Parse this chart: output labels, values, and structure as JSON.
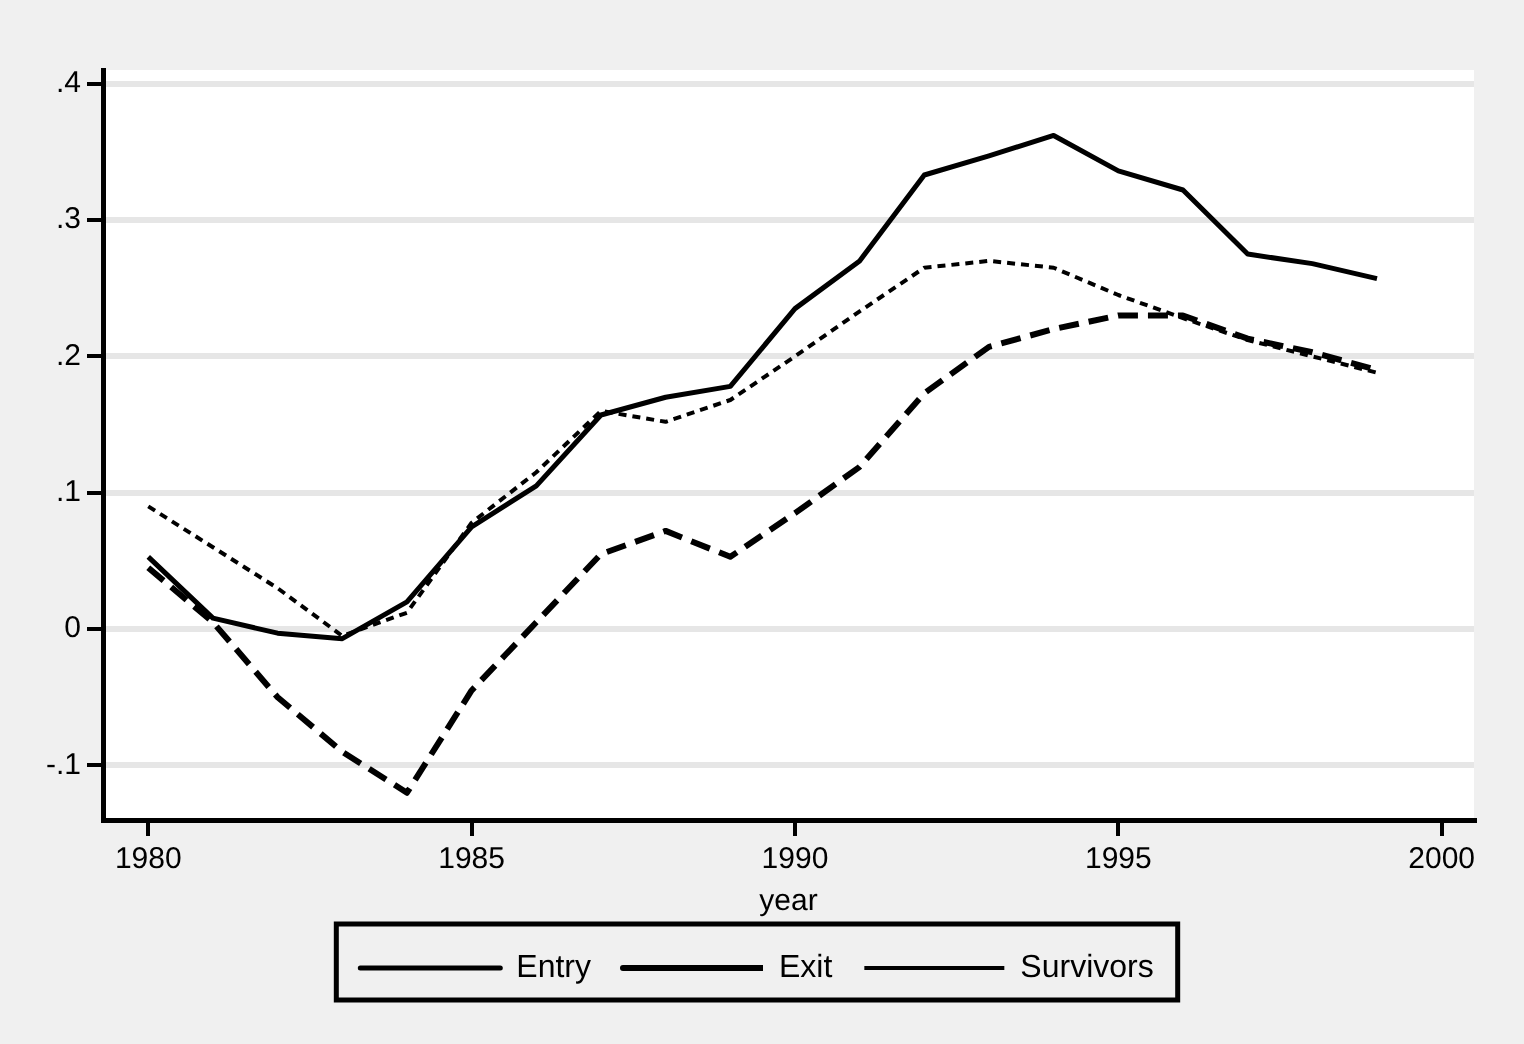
{
  "chart_data": {
    "type": "line",
    "xlabel": "year",
    "x": [
      1980,
      1981,
      1982,
      1983,
      1984,
      1985,
      1986,
      1987,
      1988,
      1989,
      1990,
      1991,
      1992,
      1993,
      1994,
      1995,
      1996,
      1997,
      1998,
      1999
    ],
    "series": [
      {
        "name": "Entry",
        "color": "#000000",
        "line_style": "solid",
        "values": [
          0.053,
          0.008,
          -0.003,
          -0.007,
          0.02,
          0.075,
          0.105,
          0.157,
          0.17,
          0.178,
          0.235,
          0.27,
          0.333,
          0.347,
          0.362,
          0.336,
          0.322,
          0.275,
          0.268,
          0.257
        ]
      },
      {
        "name": "Exit",
        "color": "#000000",
        "line_style": "dashed",
        "values": [
          0.045,
          0.005,
          -0.05,
          -0.09,
          -0.12,
          -0.045,
          0.005,
          0.055,
          0.072,
          0.053,
          0.085,
          0.119,
          0.173,
          0.207,
          0.22,
          0.23,
          0.23,
          0.213,
          0.203,
          0.19
        ]
      },
      {
        "name": "Survivors",
        "color": "#000000",
        "line_style": "dotted",
        "values": [
          0.09,
          0.06,
          0.03,
          -0.005,
          0.012,
          0.078,
          0.115,
          0.16,
          0.152,
          0.168,
          0.2,
          0.233,
          0.265,
          0.27,
          0.265,
          0.245,
          0.228,
          0.212,
          0.2,
          0.188
        ]
      }
    ],
    "xlim": [
      1979.3,
      2000.5
    ],
    "xticks": [
      1980,
      1985,
      1990,
      1995,
      2000
    ],
    "ylim": [
      -0.14,
      0.41
    ],
    "yticks": [
      {
        "value": -0.1,
        "label": "-.1"
      },
      {
        "value": 0,
        "label": "0"
      },
      {
        "value": 0.1,
        "label": ".1"
      },
      {
        "value": 0.2,
        "label": ".2"
      },
      {
        "value": 0.3,
        "label": ".3"
      },
      {
        "value": 0.4,
        "label": ".4"
      }
    ],
    "grid": "y",
    "legend": "bottom",
    "marker": "none"
  }
}
